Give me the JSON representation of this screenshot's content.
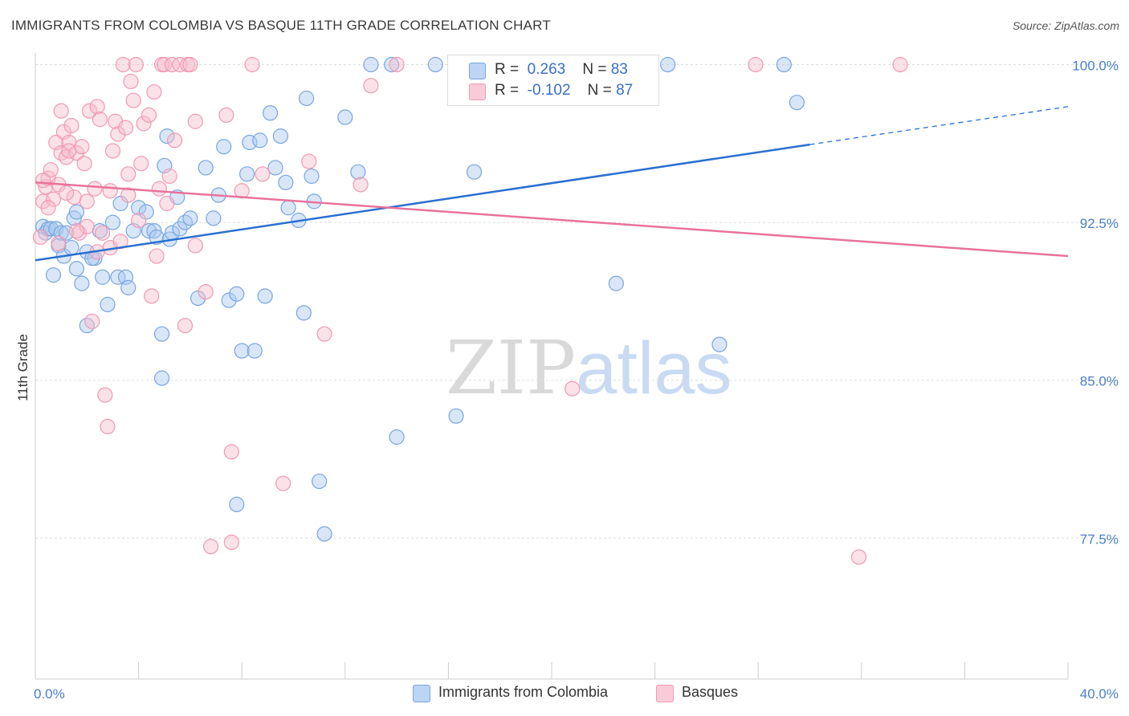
{
  "title": "IMMIGRANTS FROM COLOMBIA VS BASQUE 11TH GRADE CORRELATION CHART",
  "source": "Source: ZipAtlas.com",
  "watermark": {
    "zip": "ZIP",
    "atlas": "atlas"
  },
  "colors": {
    "blue_fill": "#a9c8f0",
    "blue_stroke": "#7aa6e0",
    "blue_line": "#2a6fd0",
    "pink_fill": "#f7bccc",
    "pink_stroke": "#f09ab4",
    "pink_line": "#e8739b",
    "axis_label": "#4a7ec7",
    "grid": "#dddddd"
  },
  "legend": {
    "blue": {
      "r_label": "R =",
      "r_value": "0.263",
      "n_label": "N =",
      "n_value": "83"
    },
    "pink": {
      "r_label": "R =",
      "r_value": "-0.102",
      "n_label": "N =",
      "n_value": "87"
    }
  },
  "bottom_legend": {
    "blue": "Immigrants from Colombia",
    "pink": "Basques"
  },
  "chart_data": {
    "type": "scatter",
    "title": "IMMIGRANTS FROM COLOMBIA VS BASQUE 11TH GRADE CORRELATION CHART",
    "xlabel": "",
    "ylabel": "11th Grade",
    "xlim": [
      0,
      40
    ],
    "ylim": [
      70.8,
      100.4
    ],
    "x_tick_labels": [
      {
        "value": 0,
        "label": "0.0%"
      },
      {
        "value": 40,
        "label": "40.0%"
      }
    ],
    "y_tick_labels": [
      {
        "value": 100,
        "label": "100.0%"
      },
      {
        "value": 92.5,
        "label": "92.5%"
      },
      {
        "value": 85,
        "label": "85.0%"
      },
      {
        "value": 77.5,
        "label": "77.5%"
      }
    ],
    "grid": true,
    "series": [
      {
        "name": "Immigrants from Colombia",
        "color": "blue",
        "trend": {
          "x": [
            0,
            30
          ],
          "y": [
            90.7,
            96.2
          ],
          "dashed_to": [
            40,
            98.0
          ]
        },
        "points": [
          [
            0.3,
            92.3
          ],
          [
            0.4,
            92.0
          ],
          [
            0.5,
            92.2
          ],
          [
            0.6,
            92.2
          ],
          [
            0.8,
            92.2
          ],
          [
            0.9,
            91.4
          ],
          [
            1.0,
            92.0
          ],
          [
            1.1,
            90.9
          ],
          [
            1.2,
            92.0
          ],
          [
            1.4,
            91.3
          ],
          [
            1.5,
            92.7
          ],
          [
            1.6,
            90.3
          ],
          [
            1.8,
            89.6
          ],
          [
            2.0,
            91.1
          ],
          [
            2.0,
            87.6
          ],
          [
            2.3,
            90.8
          ],
          [
            2.5,
            92.1
          ],
          [
            2.6,
            89.9
          ],
          [
            2.8,
            88.6
          ],
          [
            3.0,
            92.5
          ],
          [
            3.2,
            89.9
          ],
          [
            3.3,
            93.4
          ],
          [
            3.5,
            89.9
          ],
          [
            3.6,
            89.4
          ],
          [
            3.8,
            92.1
          ],
          [
            4.0,
            93.2
          ],
          [
            4.3,
            93.0
          ],
          [
            4.4,
            92.1
          ],
          [
            4.6,
            92.1
          ],
          [
            4.7,
            91.8
          ],
          [
            4.9,
            87.2
          ],
          [
            4.9,
            85.1
          ],
          [
            5.0,
            95.2
          ],
          [
            5.2,
            91.7
          ],
          [
            5.3,
            92.0
          ],
          [
            5.5,
            93.7
          ],
          [
            5.6,
            92.2
          ],
          [
            5.8,
            92.5
          ],
          [
            6.0,
            92.7
          ],
          [
            6.3,
            88.9
          ],
          [
            6.6,
            95.1
          ],
          [
            6.9,
            92.7
          ],
          [
            7.1,
            93.8
          ],
          [
            7.3,
            96.1
          ],
          [
            7.5,
            88.8
          ],
          [
            7.8,
            89.1
          ],
          [
            8.0,
            86.4
          ],
          [
            8.2,
            94.8
          ],
          [
            8.3,
            96.3
          ],
          [
            8.5,
            86.4
          ],
          [
            8.7,
            96.4
          ],
          [
            8.9,
            89.0
          ],
          [
            9.1,
            97.7
          ],
          [
            9.3,
            95.1
          ],
          [
            9.5,
            96.6
          ],
          [
            9.7,
            94.4
          ],
          [
            9.8,
            93.2
          ],
          [
            10.2,
            92.6
          ],
          [
            10.4,
            88.2
          ],
          [
            10.5,
            98.4
          ],
          [
            10.7,
            94.7
          ],
          [
            10.8,
            93.5
          ],
          [
            11.0,
            80.2
          ],
          [
            11.2,
            77.7
          ],
          [
            12.0,
            97.5
          ],
          [
            12.5,
            94.9
          ],
          [
            13.0,
            100.0
          ],
          [
            13.8,
            100.0
          ],
          [
            14.0,
            82.3
          ],
          [
            15.5,
            100.0
          ],
          [
            16.3,
            83.3
          ],
          [
            17.0,
            94.9
          ],
          [
            21.0,
            100.0
          ],
          [
            22.5,
            89.6
          ],
          [
            24.5,
            100.0
          ],
          [
            26.5,
            86.7
          ],
          [
            29.0,
            100.0
          ],
          [
            29.5,
            98.2
          ],
          [
            5.1,
            96.6
          ],
          [
            1.6,
            93.0
          ],
          [
            2.2,
            90.8
          ],
          [
            7.8,
            79.1
          ],
          [
            0.7,
            90.0
          ]
        ]
      },
      {
        "name": "Basques",
        "color": "pink",
        "trend": {
          "x": [
            0,
            40
          ],
          "y": [
            94.4,
            90.9
          ]
        },
        "points": [
          [
            0.2,
            91.8
          ],
          [
            0.3,
            93.5
          ],
          [
            0.4,
            94.2
          ],
          [
            0.5,
            94.6
          ],
          [
            0.6,
            95.0
          ],
          [
            0.7,
            93.6
          ],
          [
            0.8,
            96.3
          ],
          [
            0.9,
            94.3
          ],
          [
            1.0,
            95.8
          ],
          [
            1.1,
            96.8
          ],
          [
            1.2,
            95.6
          ],
          [
            1.3,
            96.3
          ],
          [
            1.4,
            97.1
          ],
          [
            1.5,
            93.7
          ],
          [
            1.6,
            95.8
          ],
          [
            1.7,
            92.0
          ],
          [
            1.8,
            96.1
          ],
          [
            1.9,
            95.3
          ],
          [
            2.0,
            92.3
          ],
          [
            2.1,
            97.8
          ],
          [
            2.2,
            87.8
          ],
          [
            2.3,
            94.1
          ],
          [
            2.4,
            98.0
          ],
          [
            2.5,
            97.4
          ],
          [
            2.6,
            92.0
          ],
          [
            2.7,
            84.3
          ],
          [
            2.8,
            82.8
          ],
          [
            2.9,
            91.3
          ],
          [
            3.0,
            95.9
          ],
          [
            3.1,
            97.3
          ],
          [
            3.2,
            96.7
          ],
          [
            3.3,
            91.6
          ],
          [
            3.4,
            100.0
          ],
          [
            3.5,
            97.0
          ],
          [
            3.6,
            93.8
          ],
          [
            3.7,
            99.2
          ],
          [
            3.8,
            98.3
          ],
          [
            3.9,
            100.0
          ],
          [
            4.0,
            92.6
          ],
          [
            4.2,
            97.2
          ],
          [
            4.4,
            97.6
          ],
          [
            4.5,
            89.0
          ],
          [
            4.6,
            98.7
          ],
          [
            4.7,
            90.9
          ],
          [
            4.8,
            94.1
          ],
          [
            4.9,
            100.0
          ],
          [
            5.0,
            100.0
          ],
          [
            5.2,
            94.7
          ],
          [
            5.3,
            100.0
          ],
          [
            5.4,
            96.4
          ],
          [
            5.6,
            100.0
          ],
          [
            5.8,
            87.6
          ],
          [
            5.9,
            100.0
          ],
          [
            6.0,
            100.0
          ],
          [
            6.2,
            97.3
          ],
          [
            6.6,
            89.2
          ],
          [
            6.8,
            77.1
          ],
          [
            7.4,
            97.6
          ],
          [
            7.6,
            81.6
          ],
          [
            7.6,
            77.3
          ],
          [
            8.0,
            94.0
          ],
          [
            8.4,
            100.0
          ],
          [
            8.8,
            94.8
          ],
          [
            9.6,
            80.1
          ],
          [
            10.6,
            95.4
          ],
          [
            11.2,
            87.2
          ],
          [
            12.6,
            94.3
          ],
          [
            13.0,
            99.0
          ],
          [
            14.0,
            100.0
          ],
          [
            20.8,
            84.6
          ],
          [
            27.9,
            100.0
          ],
          [
            31.9,
            76.6
          ],
          [
            33.5,
            100.0
          ],
          [
            0.9,
            91.5
          ],
          [
            1.3,
            95.9
          ],
          [
            2.0,
            93.5
          ],
          [
            2.4,
            91.1
          ],
          [
            1.0,
            97.8
          ],
          [
            0.5,
            93.2
          ],
          [
            3.6,
            94.8
          ],
          [
            0.3,
            94.5
          ],
          [
            1.6,
            92.1
          ],
          [
            6.2,
            91.4
          ],
          [
            2.9,
            94.0
          ],
          [
            4.1,
            95.3
          ],
          [
            1.2,
            93.9
          ],
          [
            5.1,
            93.4
          ]
        ]
      }
    ]
  }
}
